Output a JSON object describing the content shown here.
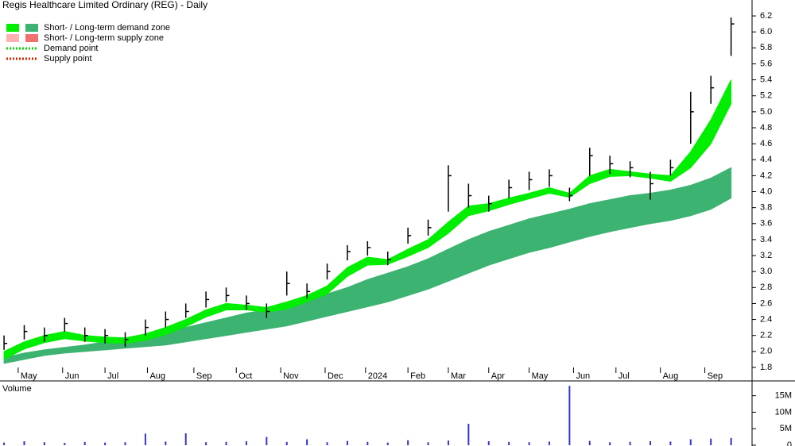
{
  "chart_data": {
    "type": "hlc",
    "title": "Regis Healthcare Limited Ordinary (REG) - Daily",
    "legend": [
      {
        "label": "Short- / Long-term demand zone",
        "colors": [
          "#00ee00",
          "#3cb371"
        ]
      },
      {
        "label": "Short- / Long-term supply zone",
        "colors": [
          "#ffb0b0",
          "#f07070"
        ]
      },
      {
        "label": "Demand point",
        "colors": [
          "#00dd00"
        ]
      },
      {
        "label": "Supply point",
        "colors": [
          "#dd2200"
        ]
      }
    ],
    "bar_color": "#000000",
    "high": [
      2.2,
      2.33,
      2.3,
      2.42,
      2.3,
      2.28,
      2.24,
      2.4,
      2.5,
      2.6,
      2.75,
      2.8,
      2.7,
      2.6,
      3.0,
      2.85,
      3.1,
      3.33,
      3.38,
      3.25,
      3.55,
      3.65,
      4.33,
      4.1,
      3.95,
      4.15,
      4.25,
      4.28,
      4.05,
      4.55,
      4.45,
      4.38,
      4.25,
      4.4,
      5.25,
      5.45,
      6.18
    ],
    "low": [
      2.02,
      2.15,
      2.12,
      2.25,
      2.12,
      2.1,
      2.06,
      2.2,
      2.3,
      2.42,
      2.55,
      2.62,
      2.52,
      2.42,
      2.7,
      2.66,
      2.9,
      3.14,
      3.2,
      3.08,
      3.35,
      3.45,
      3.75,
      3.8,
      3.75,
      3.92,
      4.02,
      4.06,
      3.88,
      4.2,
      4.22,
      4.18,
      3.9,
      4.2,
      4.6,
      5.1,
      5.7
    ],
    "close": [
      2.1,
      2.25,
      2.2,
      2.35,
      2.2,
      2.2,
      2.15,
      2.3,
      2.4,
      2.5,
      2.65,
      2.7,
      2.6,
      2.5,
      2.85,
      2.75,
      3.0,
      3.25,
      3.3,
      3.15,
      3.45,
      3.55,
      4.2,
      3.95,
      3.85,
      4.05,
      4.15,
      4.2,
      3.95,
      4.45,
      4.35,
      4.3,
      4.1,
      4.3,
      5.0,
      5.3,
      6.1
    ],
    "short_zone": {
      "name": "Short-term zone",
      "color": "#00ee00",
      "upper": [
        2.0,
        2.12,
        2.2,
        2.25,
        2.2,
        2.18,
        2.17,
        2.22,
        2.3,
        2.4,
        2.52,
        2.6,
        2.58,
        2.55,
        2.62,
        2.7,
        2.82,
        3.05,
        3.18,
        3.15,
        3.28,
        3.4,
        3.62,
        3.82,
        3.85,
        3.92,
        3.98,
        4.05,
        3.98,
        4.2,
        4.28,
        4.25,
        4.22,
        4.2,
        4.5,
        4.9,
        5.4
      ],
      "lower": [
        1.9,
        2.03,
        2.11,
        2.16,
        2.13,
        2.11,
        2.1,
        2.14,
        2.21,
        2.31,
        2.43,
        2.52,
        2.52,
        2.49,
        2.53,
        2.62,
        2.72,
        2.94,
        3.08,
        3.09,
        3.19,
        3.3,
        3.48,
        3.7,
        3.76,
        3.84,
        3.91,
        3.98,
        3.93,
        4.1,
        4.19,
        4.2,
        4.17,
        4.13,
        4.3,
        4.6,
        5.1
      ]
    },
    "long_zone": {
      "name": "Long-term zone",
      "color": "#3cb371",
      "upper": [
        1.92,
        1.98,
        2.02,
        2.05,
        2.08,
        2.12,
        2.16,
        2.2,
        2.24,
        2.3,
        2.36,
        2.42,
        2.48,
        2.52,
        2.58,
        2.64,
        2.72,
        2.8,
        2.9,
        2.98,
        3.06,
        3.16,
        3.28,
        3.4,
        3.5,
        3.58,
        3.66,
        3.72,
        3.78,
        3.85,
        3.9,
        3.95,
        3.98,
        4.02,
        4.08,
        4.17,
        4.3
      ],
      "lower": [
        1.85,
        1.9,
        1.95,
        1.98,
        2.0,
        2.02,
        2.04,
        2.06,
        2.08,
        2.12,
        2.16,
        2.2,
        2.24,
        2.28,
        2.32,
        2.38,
        2.44,
        2.5,
        2.56,
        2.62,
        2.7,
        2.78,
        2.88,
        2.98,
        3.08,
        3.16,
        3.24,
        3.3,
        3.37,
        3.44,
        3.5,
        3.55,
        3.6,
        3.64,
        3.7,
        3.78,
        3.92
      ]
    },
    "xlim": [
      -0.2,
      37
    ],
    "xticks": [
      {
        "value": 0.7,
        "label": "May"
      },
      {
        "value": 2.9,
        "label": "Jun"
      },
      {
        "value": 5.0,
        "label": "Jul"
      },
      {
        "value": 7.1,
        "label": "Aug"
      },
      {
        "value": 9.4,
        "label": "Sep"
      },
      {
        "value": 11.5,
        "label": "Oct"
      },
      {
        "value": 13.7,
        "label": "Nov"
      },
      {
        "value": 15.9,
        "label": "Dec"
      },
      {
        "value": 17.9,
        "label": "2024"
      },
      {
        "value": 20.0,
        "label": "Feb"
      },
      {
        "value": 22.0,
        "label": "Mar"
      },
      {
        "value": 24.0,
        "label": "Apr"
      },
      {
        "value": 26.0,
        "label": "May"
      },
      {
        "value": 28.2,
        "label": "Jun"
      },
      {
        "value": 30.3,
        "label": "Jul"
      },
      {
        "value": 32.5,
        "label": "Aug"
      },
      {
        "value": 34.7,
        "label": "Sep"
      }
    ],
    "ylim": [
      1.75,
      6.3
    ],
    "yticks": [
      1.8,
      {
        "value": 2,
        "label": "2.0"
      },
      2.2,
      2.4,
      2.6,
      2.8,
      {
        "value": 3,
        "label": "3.0"
      },
      3.2,
      3.4,
      3.6,
      3.8,
      {
        "value": 4,
        "label": "4.0"
      },
      4.2,
      4.4,
      4.6,
      4.8,
      {
        "value": 5,
        "label": "5.0"
      },
      5.2,
      5.4,
      5.6,
      5.8,
      {
        "value": 6,
        "label": "6.0"
      },
      6.2
    ],
    "volume": {
      "label": "Volume",
      "color": "#3333cc",
      "values": [
        800000,
        1200000,
        900000,
        700000,
        1000000,
        800000,
        900000,
        3500000,
        1100000,
        3600000,
        900000,
        1000000,
        1200000,
        2500000,
        1000000,
        1800000,
        900000,
        1300000,
        1000000,
        800000,
        1500000,
        900000,
        1400000,
        6500000,
        1200000,
        1000000,
        900000,
        1100000,
        18000000,
        1300000,
        900000,
        1000000,
        1200000,
        1100000,
        1800000,
        2000000,
        2200000
      ],
      "ylim": [
        0,
        19000000
      ],
      "yticks": [
        {
          "value": 0,
          "label": "0"
        },
        {
          "value": 5000000,
          "label": "5M"
        },
        {
          "value": 10000000,
          "label": "10M"
        },
        {
          "value": 15000000,
          "label": "15M"
        }
      ]
    }
  }
}
